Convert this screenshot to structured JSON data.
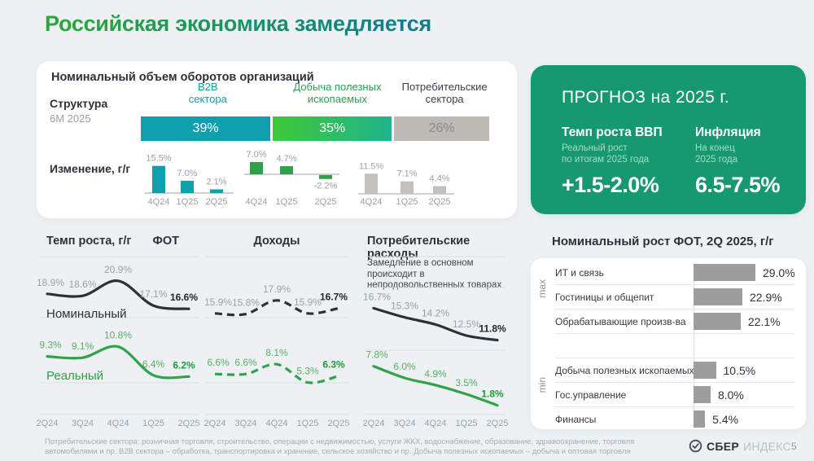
{
  "page": {
    "title": "Российская экономика замедляется",
    "page_number": "5",
    "footer_lines": [
      "Потребительские сектора: розничная торговля, строительство, операции с недвижимостью, услуги ЖКХ, водоснабжение, образование, здравоохранение, торговля",
      "автомобилями и пр. B2B сектора – обработка, транспортировка и хранение, сельское хозяйство и пр. Добыча полезных ископаемых – добыча и оптовая торговля"
    ],
    "logo": {
      "brand": "СБЕР",
      "suffix": "ИНДЕКС",
      "icon": "check-circle-icon"
    }
  },
  "turnover": {
    "title": "Номинальный объем оборотов организаций",
    "structure_label": "Структура",
    "structure_period": "6М 2025",
    "change_label": "Изменение, г/г"
  },
  "forecast": {
    "title": "ПРОГНОЗ на 2025 г.",
    "bg_color": "#17996F",
    "items": [
      {
        "label": "Темп роста ВВП",
        "sub1": "Реальный рост",
        "sub2": "по итогам 2025 года",
        "value": "+1.5-2.0%"
      },
      {
        "label": "Инфляция",
        "sub1": "На конец",
        "sub2": "2025 года",
        "value": "6.5-7.5%"
      }
    ]
  },
  "fot": {
    "max_label": "max",
    "min_label": "min"
  },
  "colors": {
    "teal": "#10A0AD",
    "teal_text": "#189AAB",
    "green": "#2FA148",
    "green_text": "#2CA04E",
    "green_bright": "#3FC83A",
    "green_teal": "#1FB38F",
    "gray_segment": "#BDBAB6",
    "gray_bar_mini": "#C3C0BC",
    "gray_bar_fot": "#9D9D9D",
    "dark": "#2B3138",
    "gray_text": "#9AA1A8",
    "nominal_line": "#2B3138",
    "real_line": "#31A245",
    "forecast_bg": "#17996F"
  },
  "chart_data": [
    {
      "id": "turnover-structure",
      "type": "bar",
      "title": "Структура, 6М 2025",
      "categories": [
        "B2B сектора",
        "Добыча полезных ископаемых",
        "Потребительские сектора"
      ],
      "values": [
        39,
        35,
        26
      ],
      "labels": [
        "39%",
        "35%",
        "26%"
      ]
    },
    {
      "id": "turnover-change",
      "type": "bar",
      "title": "Изменение, г/г",
      "categories": [
        "4Q24",
        "1Q25",
        "2Q25"
      ],
      "series": [
        {
          "name": "B2B сектора",
          "values": [
            15.5,
            7.0,
            2.1
          ],
          "labels": [
            "15.5%",
            "7.0%",
            "2.1%"
          ]
        },
        {
          "name": "Добыча полезных ископаемых",
          "values": [
            7.0,
            4.7,
            -2.2
          ],
          "labels": [
            "7.0%",
            "4.7%",
            "-2.2%"
          ]
        },
        {
          "name": "Потребительские сектора",
          "values": [
            11.5,
            7.1,
            4.4
          ],
          "labels": [
            "11.5%",
            "7.1%",
            "4.4%"
          ]
        }
      ]
    },
    {
      "id": "fot-growth",
      "type": "line",
      "title": "ФОТ",
      "ylabel": "Темп роста, г/г",
      "x": [
        "2Q24",
        "3Q24",
        "4Q24",
        "1Q25",
        "2Q25"
      ],
      "series": [
        {
          "name": "Номинальный",
          "style": "solid",
          "values": [
            18.9,
            18.6,
            20.9,
            17.1,
            16.6
          ],
          "labels": [
            "18.9%",
            "18.6%",
            "20.9%",
            "17.1%",
            "16.6%"
          ]
        },
        {
          "name": "Реальный",
          "style": "solid",
          "values": [
            9.3,
            9.1,
            10.8,
            6.4,
            6.2
          ],
          "labels": [
            "9.3%",
            "9.1%",
            "10.8%",
            "6.4%",
            "6.2%"
          ]
        }
      ],
      "series_names_shown": true
    },
    {
      "id": "incomes-growth",
      "type": "line",
      "title": "Доходы",
      "x": [
        "2Q24",
        "3Q24",
        "4Q24",
        "1Q25",
        "2Q25"
      ],
      "series": [
        {
          "name": "Номинальный",
          "style": "dashed",
          "values": [
            15.9,
            15.8,
            17.9,
            15.9,
            16.7
          ],
          "labels": [
            "15.9%",
            "15.8%",
            "17.9%",
            "15.9%",
            "16.7%"
          ]
        },
        {
          "name": "Реальный",
          "style": "dashed",
          "values": [
            6.6,
            6.6,
            8.1,
            5.3,
            6.3
          ],
          "labels": [
            "6.6%",
            "6.6%",
            "8.1%",
            "5.3%",
            "6.3%"
          ]
        }
      ],
      "series_names_shown": false
    },
    {
      "id": "consumer-spending",
      "type": "line",
      "title": "Потребительские расходы",
      "subtitle": "Замедление в основном происходит в непродовольственных товарах",
      "x": [
        "2Q24",
        "3Q24",
        "4Q24",
        "1Q25",
        "2Q25"
      ],
      "series": [
        {
          "name": "Номинальный",
          "style": "solid",
          "values": [
            16.7,
            15.3,
            14.2,
            12.5,
            11.8
          ],
          "labels": [
            "16.7%",
            "15.3%",
            "14.2%",
            "12.5%",
            "11.8%"
          ]
        },
        {
          "name": "Реальный",
          "style": "solid",
          "values": [
            7.8,
            6.0,
            4.9,
            3.5,
            1.8
          ],
          "labels": [
            "7.8%",
            "6.0%",
            "4.9%",
            "3.5%",
            "1.8%"
          ]
        }
      ],
      "series_names_shown": false
    },
    {
      "id": "fot-by-sector",
      "type": "bar",
      "title": "Номинальный рост ФОТ, 2Q 2025, г/г",
      "categories": [
        "ИТ и связь",
        "Гостиницы и общепит",
        "Обрабатывающие произв-ва",
        "Добыча полезных ископаемых",
        "Гос.управление",
        "Финансы"
      ],
      "values": [
        29.0,
        22.9,
        22.1,
        10.5,
        8.0,
        5.4
      ],
      "labels": [
        "29.0%",
        "22.9%",
        "22.1%",
        "10.5%",
        "8.0%",
        "5.4%"
      ],
      "groups": [
        "max",
        "max",
        "max",
        "min",
        "min",
        "min"
      ]
    }
  ]
}
